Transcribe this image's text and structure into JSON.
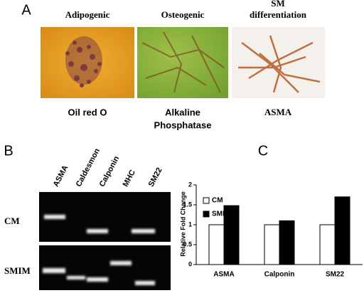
{
  "panel_a": {
    "label": "A",
    "columns": [
      {
        "title": [
          "Adipogenic"
        ],
        "stain": [
          "Oil red O"
        ]
      },
      {
        "title": [
          "Osteogenic"
        ],
        "stain": [
          "Alkaline",
          "Phosphatase"
        ]
      },
      {
        "title": [
          "SM",
          "differentiation"
        ],
        "stain": [
          "ASMA"
        ]
      }
    ]
  },
  "panel_b": {
    "label": "B",
    "lanes": [
      "ASMA",
      "Caldesmon",
      "Calponin",
      "MHC",
      "SM22"
    ],
    "rows": [
      "CM",
      "SMIM"
    ]
  },
  "panel_c_label": "C",
  "chart_data": {
    "type": "bar",
    "ylabel": "Relative Fold Change",
    "categories": [
      "ASMA",
      "Calponin",
      "SM22"
    ],
    "series": [
      {
        "name": "CM",
        "color": "#ffffff",
        "values": [
          1,
          1,
          1
        ]
      },
      {
        "name": "SMIM",
        "color": "#000000",
        "values": [
          1.48,
          1.1,
          1.7
        ]
      }
    ],
    "ylim": [
      0,
      2
    ],
    "yticks": [
      0,
      0.5,
      1,
      1.5,
      2
    ],
    "legend": "upper left",
    "grid": false
  }
}
